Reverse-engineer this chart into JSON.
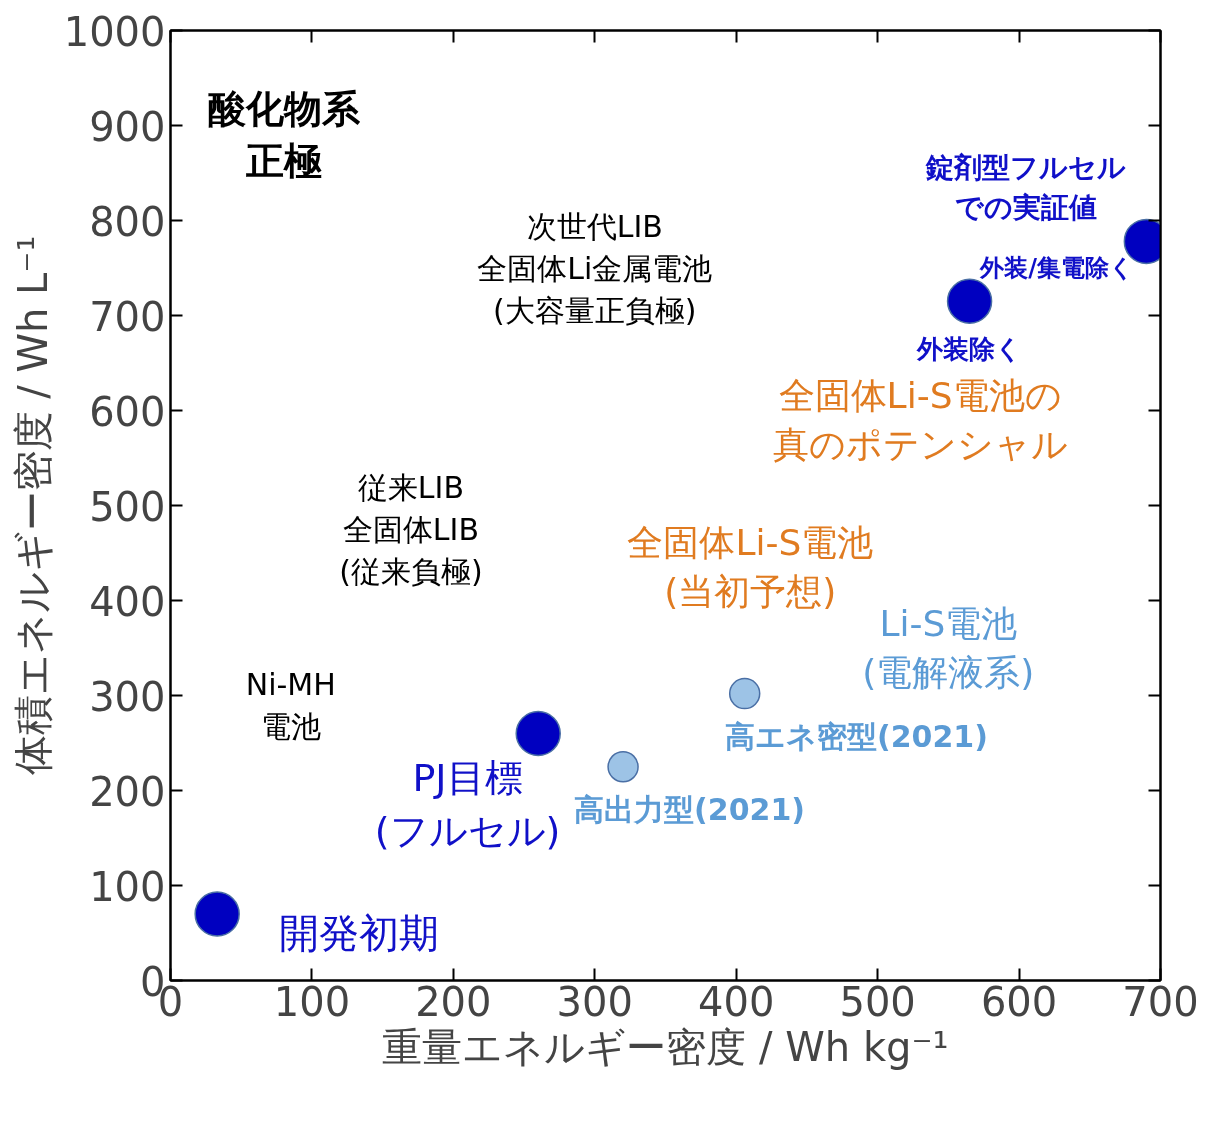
{
  "chart_data": {
    "type": "scatter",
    "xlabel": "重量エネルギー密度 / Wh kg⁻¹",
    "ylabel": "体積エネルギー密度 / Wh L⁻¹",
    "xlim": [
      0,
      700
    ],
    "ylim": [
      0,
      1000
    ],
    "xticks": [
      0,
      100,
      200,
      300,
      400,
      500,
      600,
      700
    ],
    "yticks": [
      0,
      100,
      200,
      300,
      400,
      500,
      600,
      700,
      800,
      900,
      1000
    ],
    "grid": false,
    "marker": "circle",
    "series": [
      {
        "color": "#0000c0",
        "x": [
          33,
          260,
          565,
          690
        ],
        "values": [
          70,
          260,
          715,
          778
        ]
      },
      {
        "color": "#9dc3e6",
        "x": [
          320,
          406
        ],
        "values": [
          225,
          302
        ]
      }
    ],
    "annotations": [
      "酸化物系正極",
      "次世代LIB全固体Li金属電池(大容量正負極)",
      "従来LIB全固体LIB(従来負極)",
      "Ni-MH電池",
      "全固体Li-S電池の真のポテンシャル",
      "全固体Li-S電池(当初予想)",
      "Li-S電池(電解液系)",
      "高エネ密型(2021)",
      "高出力型(2021)",
      "PJ目標(フルセル)",
      "開発初期",
      "錠剤型フルセルでの実証値",
      "外装除く",
      "外装/集電除く"
    ]
  }
}
